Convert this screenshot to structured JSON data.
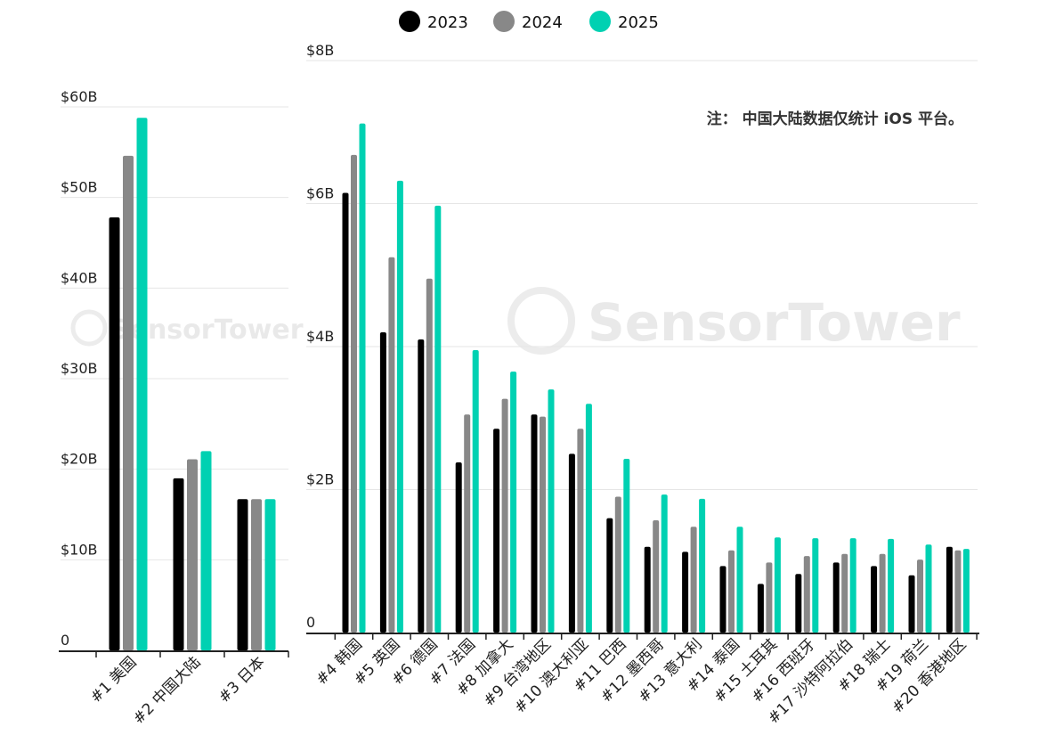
{
  "legend": [
    {
      "label": "2023",
      "color": "#000000"
    },
    {
      "label": "2024",
      "color": "#888888"
    },
    {
      "label": "2025",
      "color": "#00d1b2"
    }
  ],
  "note": "注： 中国大陆数据仅统计 iOS 平台。",
  "watermark": "SensorTower",
  "chart_data": [
    {
      "type": "bar",
      "categories": [
        "#1 美国",
        "#2 中国大陆",
        "#3 日本"
      ],
      "series": [
        {
          "name": "2023",
          "values": [
            47.8,
            19.0,
            16.7
          ]
        },
        {
          "name": "2024",
          "values": [
            54.6,
            21.1,
            16.7
          ]
        },
        {
          "name": "2025",
          "values": [
            58.8,
            22.0,
            16.7
          ]
        }
      ],
      "ylim": [
        0,
        60
      ],
      "yticks": [
        0,
        10,
        20,
        30,
        40,
        50,
        60
      ],
      "ytick_labels": [
        "0",
        "$10B",
        "$20B",
        "$30B",
        "$40B",
        "$50B",
        "$60B"
      ],
      "grid": true
    },
    {
      "type": "bar",
      "categories": [
        "#4 韩国",
        "#5 英国",
        "#6 德国",
        "#7 法国",
        "#8 加拿大",
        "#9 台湾地区",
        "#10 澳大利亚",
        "#11 巴西",
        "#12 墨西哥",
        "#13 意大利",
        "#14 泰国",
        "#15 土耳其",
        "#16 西班牙",
        "#17 沙特阿拉伯",
        "#18 瑞士",
        "#19 荷兰",
        "#20 香港地区"
      ],
      "series": [
        {
          "name": "2023",
          "values": [
            6.15,
            4.2,
            4.1,
            2.38,
            2.85,
            3.05,
            2.5,
            1.6,
            1.2,
            1.13,
            0.93,
            0.68,
            0.82,
            0.98,
            0.93,
            0.8,
            1.2
          ]
        },
        {
          "name": "2024",
          "values": [
            6.68,
            5.25,
            4.95,
            3.05,
            3.27,
            3.02,
            2.85,
            1.9,
            1.57,
            1.48,
            1.15,
            0.98,
            1.07,
            1.1,
            1.1,
            1.02,
            1.15
          ]
        },
        {
          "name": "2025",
          "values": [
            7.12,
            6.32,
            5.97,
            3.95,
            3.65,
            3.4,
            3.2,
            2.43,
            1.93,
            1.87,
            1.48,
            1.33,
            1.32,
            1.32,
            1.31,
            1.23,
            1.17
          ]
        }
      ],
      "ylim": [
        0,
        8
      ],
      "yticks": [
        0,
        2,
        4,
        6,
        8
      ],
      "ytick_labels": [
        "0",
        "$2B",
        "$4B",
        "$6B",
        "$8B"
      ],
      "grid": true
    }
  ]
}
